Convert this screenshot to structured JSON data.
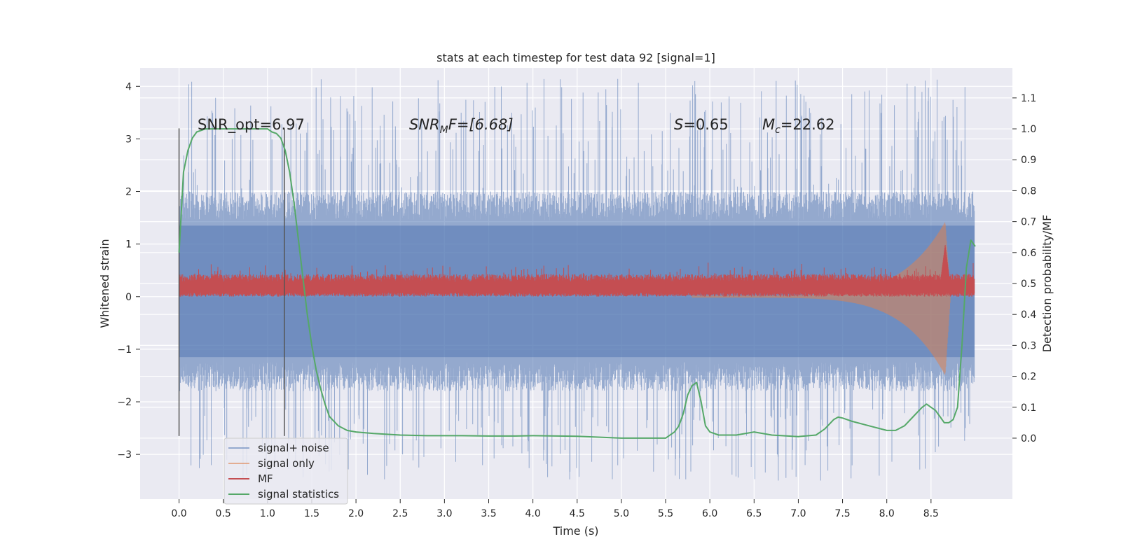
{
  "chart_data": {
    "type": "line",
    "title": "stats at each timestep for test data 92 [signal=1]",
    "xlabel": "Time (s)",
    "ylabel_left": "Whitened strain",
    "ylabel_right": "Detection probability/MF",
    "xlim": [
      -0.44,
      9.42
    ],
    "ylim_left": [
      -3.85,
      4.35
    ],
    "ylim_right": [
      -0.197,
      1.197
    ],
    "xticks": [
      "0.0",
      "0.5",
      "1.0",
      "1.5",
      "2.0",
      "2.5",
      "3.0",
      "3.5",
      "4.0",
      "4.5",
      "5.0",
      "5.5",
      "6.0",
      "6.5",
      "7.0",
      "7.5",
      "8.0",
      "8.5"
    ],
    "xtick_values": [
      0,
      0.5,
      1,
      1.5,
      2,
      2.5,
      3,
      3.5,
      4,
      4.5,
      5,
      5.5,
      6,
      6.5,
      7,
      7.5,
      8,
      8.5
    ],
    "yticks_left": [
      "−3",
      "−2",
      "−1",
      "0",
      "1",
      "2",
      "3",
      "4"
    ],
    "ytick_values_left": [
      -3,
      -2,
      -1,
      0,
      1,
      2,
      3,
      4
    ],
    "yticks_right": [
      "0.0",
      "0.1",
      "0.2",
      "0.3",
      "0.4",
      "0.5",
      "0.6",
      "0.7",
      "0.8",
      "0.9",
      "1.0",
      "1.1"
    ],
    "ytick_values_right": [
      0,
      0.1,
      0.2,
      0.3,
      0.4,
      0.5,
      0.6,
      0.7,
      0.8,
      0.9,
      1.0,
      1.1
    ],
    "annotations": {
      "snr_opt": "SNR_opt=6.97",
      "snr_mf_italic": "SNR",
      "snr_mf_sub": "M",
      "snr_mf_rest": "F=[6.68]",
      "s_italic": "S",
      "s_rest": "=0.65",
      "mc_italic": "M",
      "mc_sub": "c",
      "mc_rest": "=22.62"
    },
    "vlines": [
      {
        "x": 0.0,
        "ymin": -2.65,
        "ymax": 3.2
      },
      {
        "x": 1.19,
        "ymin": -2.65,
        "ymax": 3.2
      }
    ],
    "series": [
      {
        "name": "signal+ noise",
        "color": "#4c72b0",
        "style": "noise",
        "t_range": [
          0,
          8.99
        ],
        "band": [
          -1.25,
          1.45
        ],
        "spikes_max": [
          2.5,
          4.05
        ],
        "spikes_min": [
          -2.7,
          -3.5
        ]
      },
      {
        "name": "signal only",
        "color": "#dd8452",
        "style": "chirp",
        "merger_time": 8.66,
        "peak": [
          -1.55,
          1.4
        ]
      },
      {
        "name": "MF",
        "color": "#c44e52",
        "style": "mf",
        "t_range": [
          0,
          8.99
        ],
        "base": 0.2,
        "band": [
          0.0,
          0.4
        ],
        "peak_time": 8.66,
        "peak_value": 1.0
      },
      {
        "name": "signal statistics",
        "color": "#55a868",
        "axis": "right",
        "x": [
          0.0,
          0.05,
          0.1,
          0.15,
          0.2,
          0.3,
          0.5,
          0.8,
          1.0,
          1.05,
          1.1,
          1.15,
          1.2,
          1.25,
          1.3,
          1.35,
          1.4,
          1.45,
          1.5,
          1.55,
          1.6,
          1.65,
          1.7,
          1.8,
          1.9,
          2.0,
          2.2,
          2.5,
          2.8,
          3.0,
          3.2,
          3.5,
          3.8,
          4.0,
          4.5,
          5.0,
          5.3,
          5.5,
          5.6,
          5.65,
          5.7,
          5.75,
          5.8,
          5.85,
          5.9,
          5.95,
          6.0,
          6.1,
          6.3,
          6.5,
          6.7,
          7.0,
          7.2,
          7.3,
          7.4,
          7.45,
          7.5,
          7.6,
          7.8,
          8.0,
          8.1,
          8.2,
          8.3,
          8.4,
          8.45,
          8.5,
          8.55,
          8.6,
          8.65,
          8.7,
          8.75,
          8.8,
          8.85,
          8.9,
          8.95,
          9.0
        ],
        "y": [
          0.6,
          0.86,
          0.93,
          0.97,
          0.99,
          1.0,
          1.0,
          1.0,
          1.0,
          0.99,
          0.985,
          0.97,
          0.93,
          0.86,
          0.76,
          0.64,
          0.52,
          0.4,
          0.3,
          0.22,
          0.16,
          0.11,
          0.07,
          0.04,
          0.025,
          0.02,
          0.015,
          0.01,
          0.008,
          0.008,
          0.008,
          0.007,
          0.007,
          0.008,
          0.006,
          0.0,
          0.0,
          0.0,
          0.02,
          0.04,
          0.08,
          0.14,
          0.17,
          0.18,
          0.12,
          0.04,
          0.02,
          0.01,
          0.01,
          0.02,
          0.01,
          0.005,
          0.01,
          0.03,
          0.06,
          0.068,
          0.065,
          0.055,
          0.04,
          0.025,
          0.025,
          0.04,
          0.07,
          0.1,
          0.11,
          0.1,
          0.09,
          0.07,
          0.05,
          0.05,
          0.06,
          0.1,
          0.3,
          0.55,
          0.64,
          0.62
        ]
      }
    ],
    "legend": {
      "location": "lower-left",
      "entries": [
        "signal+ noise",
        "signal only",
        "MF",
        "signal statistics"
      ]
    },
    "grid": true,
    "colors": {
      "axes_bg": "#eaeaf2",
      "grid": "#ffffff",
      "text": "#262626",
      "vline": "#555555"
    }
  }
}
